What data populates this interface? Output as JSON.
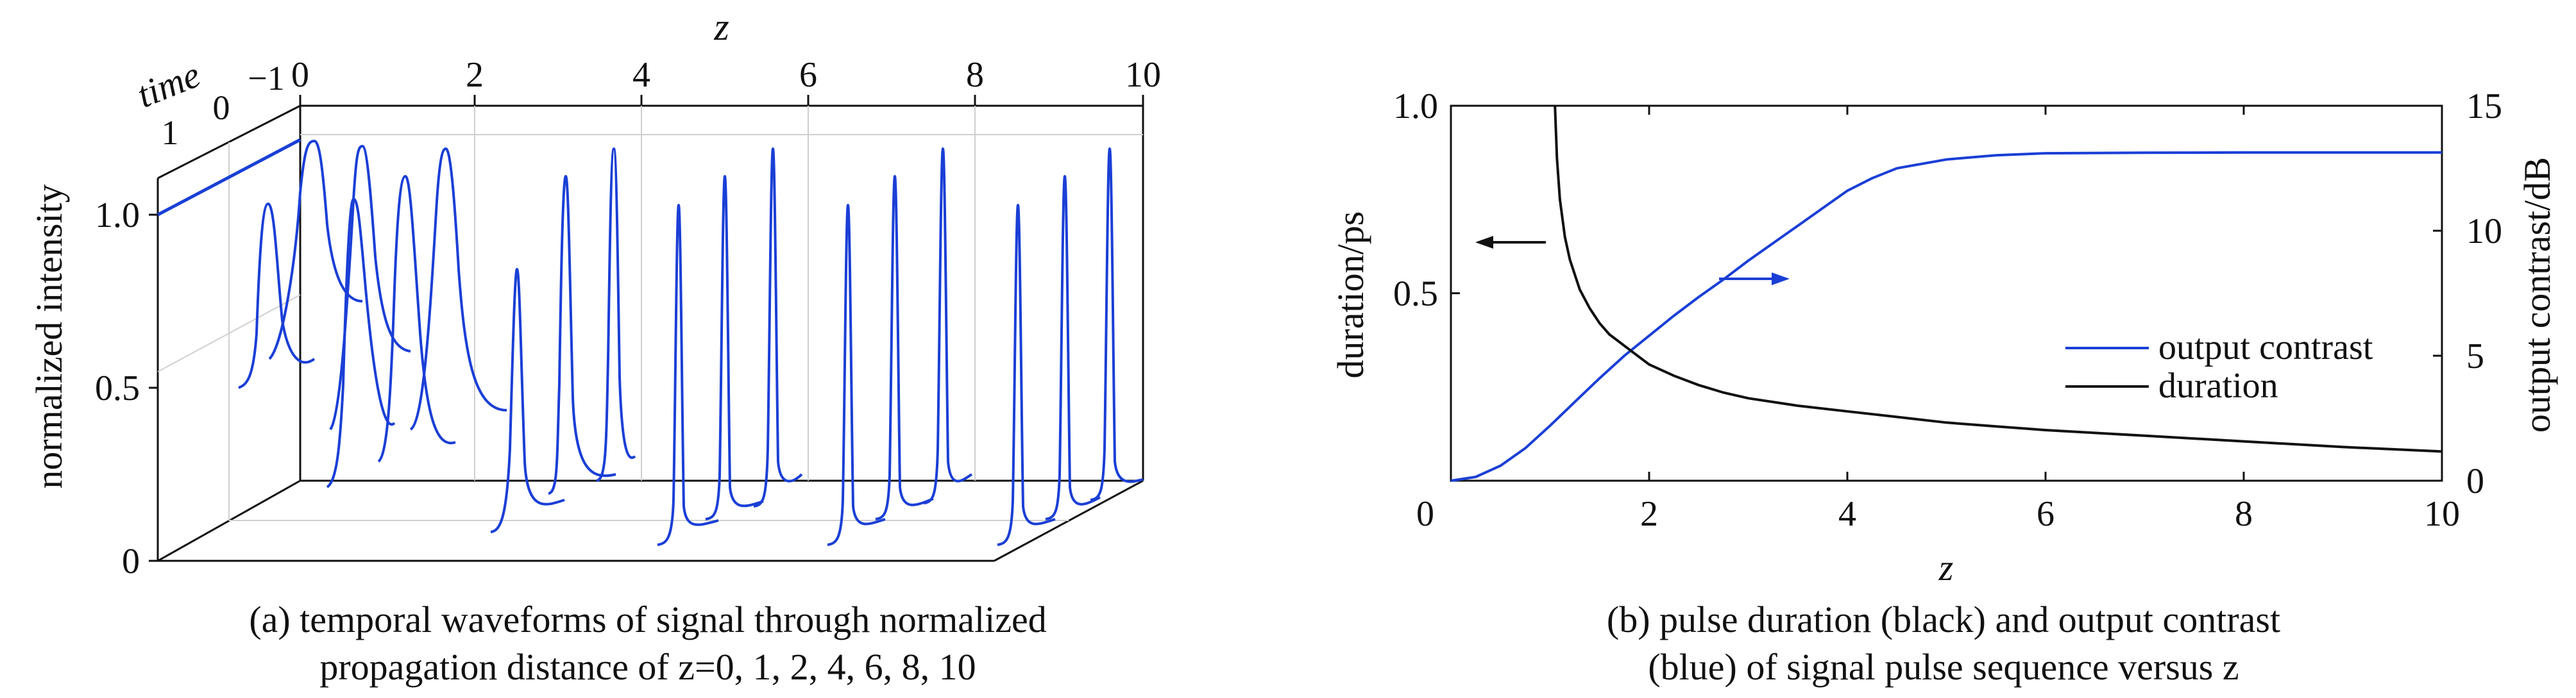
{
  "figure": {
    "caption_a_line1": "(a) temporal waveforms of signal through normalized",
    "caption_a_line2": "propagation distance of z=0, 1, 2, 4, 6, 8, 10",
    "caption_b_line1": "(b) pulse duration (black) and output contrast",
    "caption_b_line2": "(blue) of signal pulse sequence versus z"
  },
  "chart_data": [
    {
      "type": "line",
      "projection": "3d waterfall",
      "title": "",
      "z_label": "z",
      "time_label": "time",
      "ylabel": "normalized intensity",
      "z_ticks": [
        "0",
        "2",
        "4",
        "6",
        "8",
        "10"
      ],
      "time_ticks": [
        "1",
        "0",
        "−1"
      ],
      "y_ticks": [
        "0",
        "0.5",
        "1.0"
      ],
      "zlim": [
        0,
        10
      ],
      "ylim": [
        0,
        1.1
      ],
      "series_color": "#1a3fd6",
      "slices_z": [
        0,
        1,
        2,
        4,
        6,
        8,
        10
      ],
      "annotation": "z"
    },
    {
      "type": "line",
      "title": "",
      "xlabel": "z",
      "ylabel_left": "duration/ps",
      "ylabel_right": "output contrast/dB",
      "xlim": [
        0,
        10
      ],
      "ylim_left": [
        0,
        1.0
      ],
      "ylim_right": [
        0,
        15
      ],
      "x_ticks": [
        "0",
        "2",
        "4",
        "6",
        "8",
        "10"
      ],
      "y_left_ticks": [
        "0.5",
        "1.0"
      ],
      "y_right_ticks": [
        "0",
        "5",
        "10",
        "15"
      ],
      "legend_position": "right-middle",
      "series": [
        {
          "name": "output contrast",
          "axis": "right",
          "color": "#1a3fd6",
          "x": [
            0,
            0.25,
            0.5,
            0.75,
            1.0,
            1.25,
            1.5,
            1.75,
            2.0,
            2.25,
            2.5,
            2.75,
            3.0,
            3.25,
            3.5,
            3.75,
            4.0,
            4.25,
            4.5,
            5.0,
            5.5,
            6.0,
            7.0,
            8.0,
            9.0,
            10.0
          ],
          "y": [
            0,
            0.15,
            0.6,
            1.3,
            2.2,
            3.15,
            4.1,
            5.0,
            5.8,
            6.6,
            7.35,
            8.05,
            8.8,
            9.5,
            10.2,
            10.9,
            11.6,
            12.1,
            12.5,
            12.85,
            13.02,
            13.1,
            13.12,
            13.13,
            13.13,
            13.13
          ]
        },
        {
          "name": "duration",
          "axis": "left",
          "color": "#111111",
          "x": [
            1.05,
            1.07,
            1.1,
            1.15,
            1.2,
            1.3,
            1.4,
            1.5,
            1.6,
            1.8,
            2.0,
            2.25,
            2.5,
            2.75,
            3.0,
            3.5,
            4.0,
            4.5,
            5.0,
            5.5,
            6.0,
            7.0,
            8.0,
            9.0,
            10.0
          ],
          "y": [
            1.0,
            0.86,
            0.75,
            0.65,
            0.59,
            0.51,
            0.46,
            0.42,
            0.39,
            0.35,
            0.31,
            0.28,
            0.255,
            0.235,
            0.22,
            0.2,
            0.185,
            0.17,
            0.155,
            0.145,
            0.135,
            0.12,
            0.105,
            0.09,
            0.078
          ]
        }
      ],
      "arrows": [
        {
          "direction": "left",
          "color": "#111111",
          "points_to": "duration axis"
        },
        {
          "direction": "right",
          "color": "#1a3fd6",
          "points_to": "output contrast axis"
        }
      ]
    }
  ]
}
